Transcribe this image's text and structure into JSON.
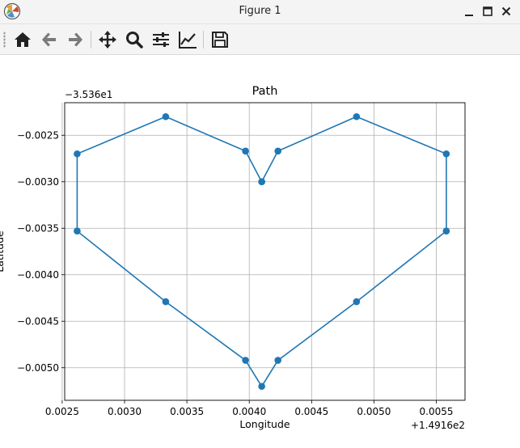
{
  "window": {
    "title": "Figure 1",
    "controls": [
      "minimize",
      "maximize",
      "close"
    ]
  },
  "toolbar": {
    "buttons": [
      {
        "name": "home",
        "icon": "home-icon"
      },
      {
        "name": "back",
        "icon": "arrow-left-icon"
      },
      {
        "name": "forward",
        "icon": "arrow-right-icon"
      },
      {
        "name": "pan",
        "icon": "move-icon"
      },
      {
        "name": "zoom",
        "icon": "magnifier-icon"
      },
      {
        "name": "configure-subplots",
        "icon": "sliders-icon"
      },
      {
        "name": "edit-axis",
        "icon": "line-chart-icon"
      },
      {
        "name": "save",
        "icon": "floppy-disk-icon"
      }
    ]
  },
  "chart_data": {
    "type": "line",
    "title": "Path",
    "xlabel": "Longitude",
    "ylabel": "Latitude",
    "x_offset_text": "+1.4916e2",
    "y_offset_text": "−3.536e1",
    "xlim": [
      0.00252,
      0.00573
    ],
    "ylim": [
      -0.00535,
      -0.00215
    ],
    "xticks": [
      0.0025,
      0.003,
      0.0035,
      0.004,
      0.0045,
      0.005,
      0.0055
    ],
    "xtick_labels": [
      "0.0025",
      "0.0030",
      "0.0035",
      "0.0040",
      "0.0045",
      "0.0050",
      "0.0055"
    ],
    "yticks": [
      -0.0025,
      -0.003,
      -0.0035,
      -0.004,
      -0.0045,
      -0.005
    ],
    "ytick_labels": [
      "−0.0025",
      "−0.0030",
      "−0.0035",
      "−0.0040",
      "−0.0045",
      "−0.0050"
    ],
    "grid": true,
    "color": "#1f77b4",
    "series": [
      {
        "x": [
          0.0041,
          0.00423,
          0.00486,
          0.00558,
          0.00558,
          0.00486,
          0.00423,
          0.0041,
          0.00397,
          0.00333,
          0.00262,
          0.00262,
          0.00333,
          0.00397,
          0.0041
        ],
        "y": [
          -0.003,
          -0.00267,
          -0.0023,
          -0.0027,
          -0.00353,
          -0.00429,
          -0.00492,
          -0.0052,
          -0.00492,
          -0.00429,
          -0.00353,
          -0.0027,
          -0.0023,
          -0.00267,
          -0.003
        ]
      }
    ]
  }
}
